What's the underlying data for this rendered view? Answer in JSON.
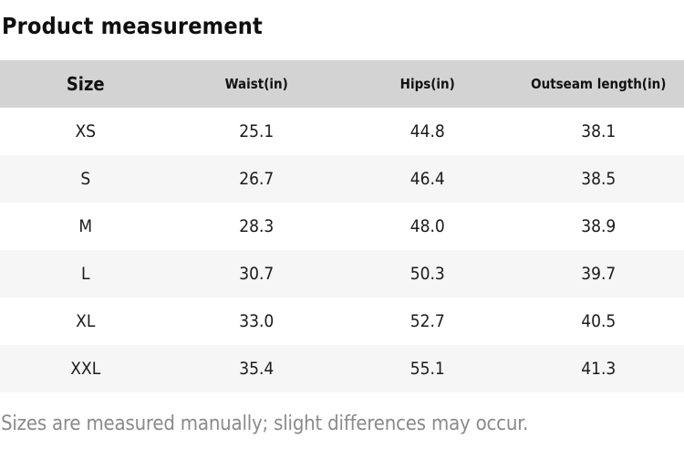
{
  "page": {
    "title": "Product measurement",
    "footnote": "Sizes are measured manually; slight differences may occur."
  },
  "table": {
    "columns": [
      {
        "key": "size",
        "label": "Size"
      },
      {
        "key": "waist",
        "label": "Waist(in)"
      },
      {
        "key": "hips",
        "label": "Hips(in)"
      },
      {
        "key": "outseam",
        "label": "Outseam length(in)"
      }
    ],
    "rows": [
      {
        "size": "XS",
        "waist": "25.1",
        "hips": "44.8",
        "outseam": "38.1"
      },
      {
        "size": "S",
        "waist": "26.7",
        "hips": "46.4",
        "outseam": "38.5"
      },
      {
        "size": "M",
        "waist": "28.3",
        "hips": "48.0",
        "outseam": "38.9"
      },
      {
        "size": "L",
        "waist": "30.7",
        "hips": "50.3",
        "outseam": "39.7"
      },
      {
        "size": "XL",
        "waist": "33.0",
        "hips": "52.7",
        "outseam": "40.5"
      },
      {
        "size": "XXL",
        "waist": "35.4",
        "hips": "55.1",
        "outseam": "41.3"
      }
    ]
  },
  "colors": {
    "header_bg": "#d3d3d3",
    "row_alt_bg": "#f6f6f6",
    "text": "#1b1b1b",
    "footnote": "#8a8a8a"
  }
}
